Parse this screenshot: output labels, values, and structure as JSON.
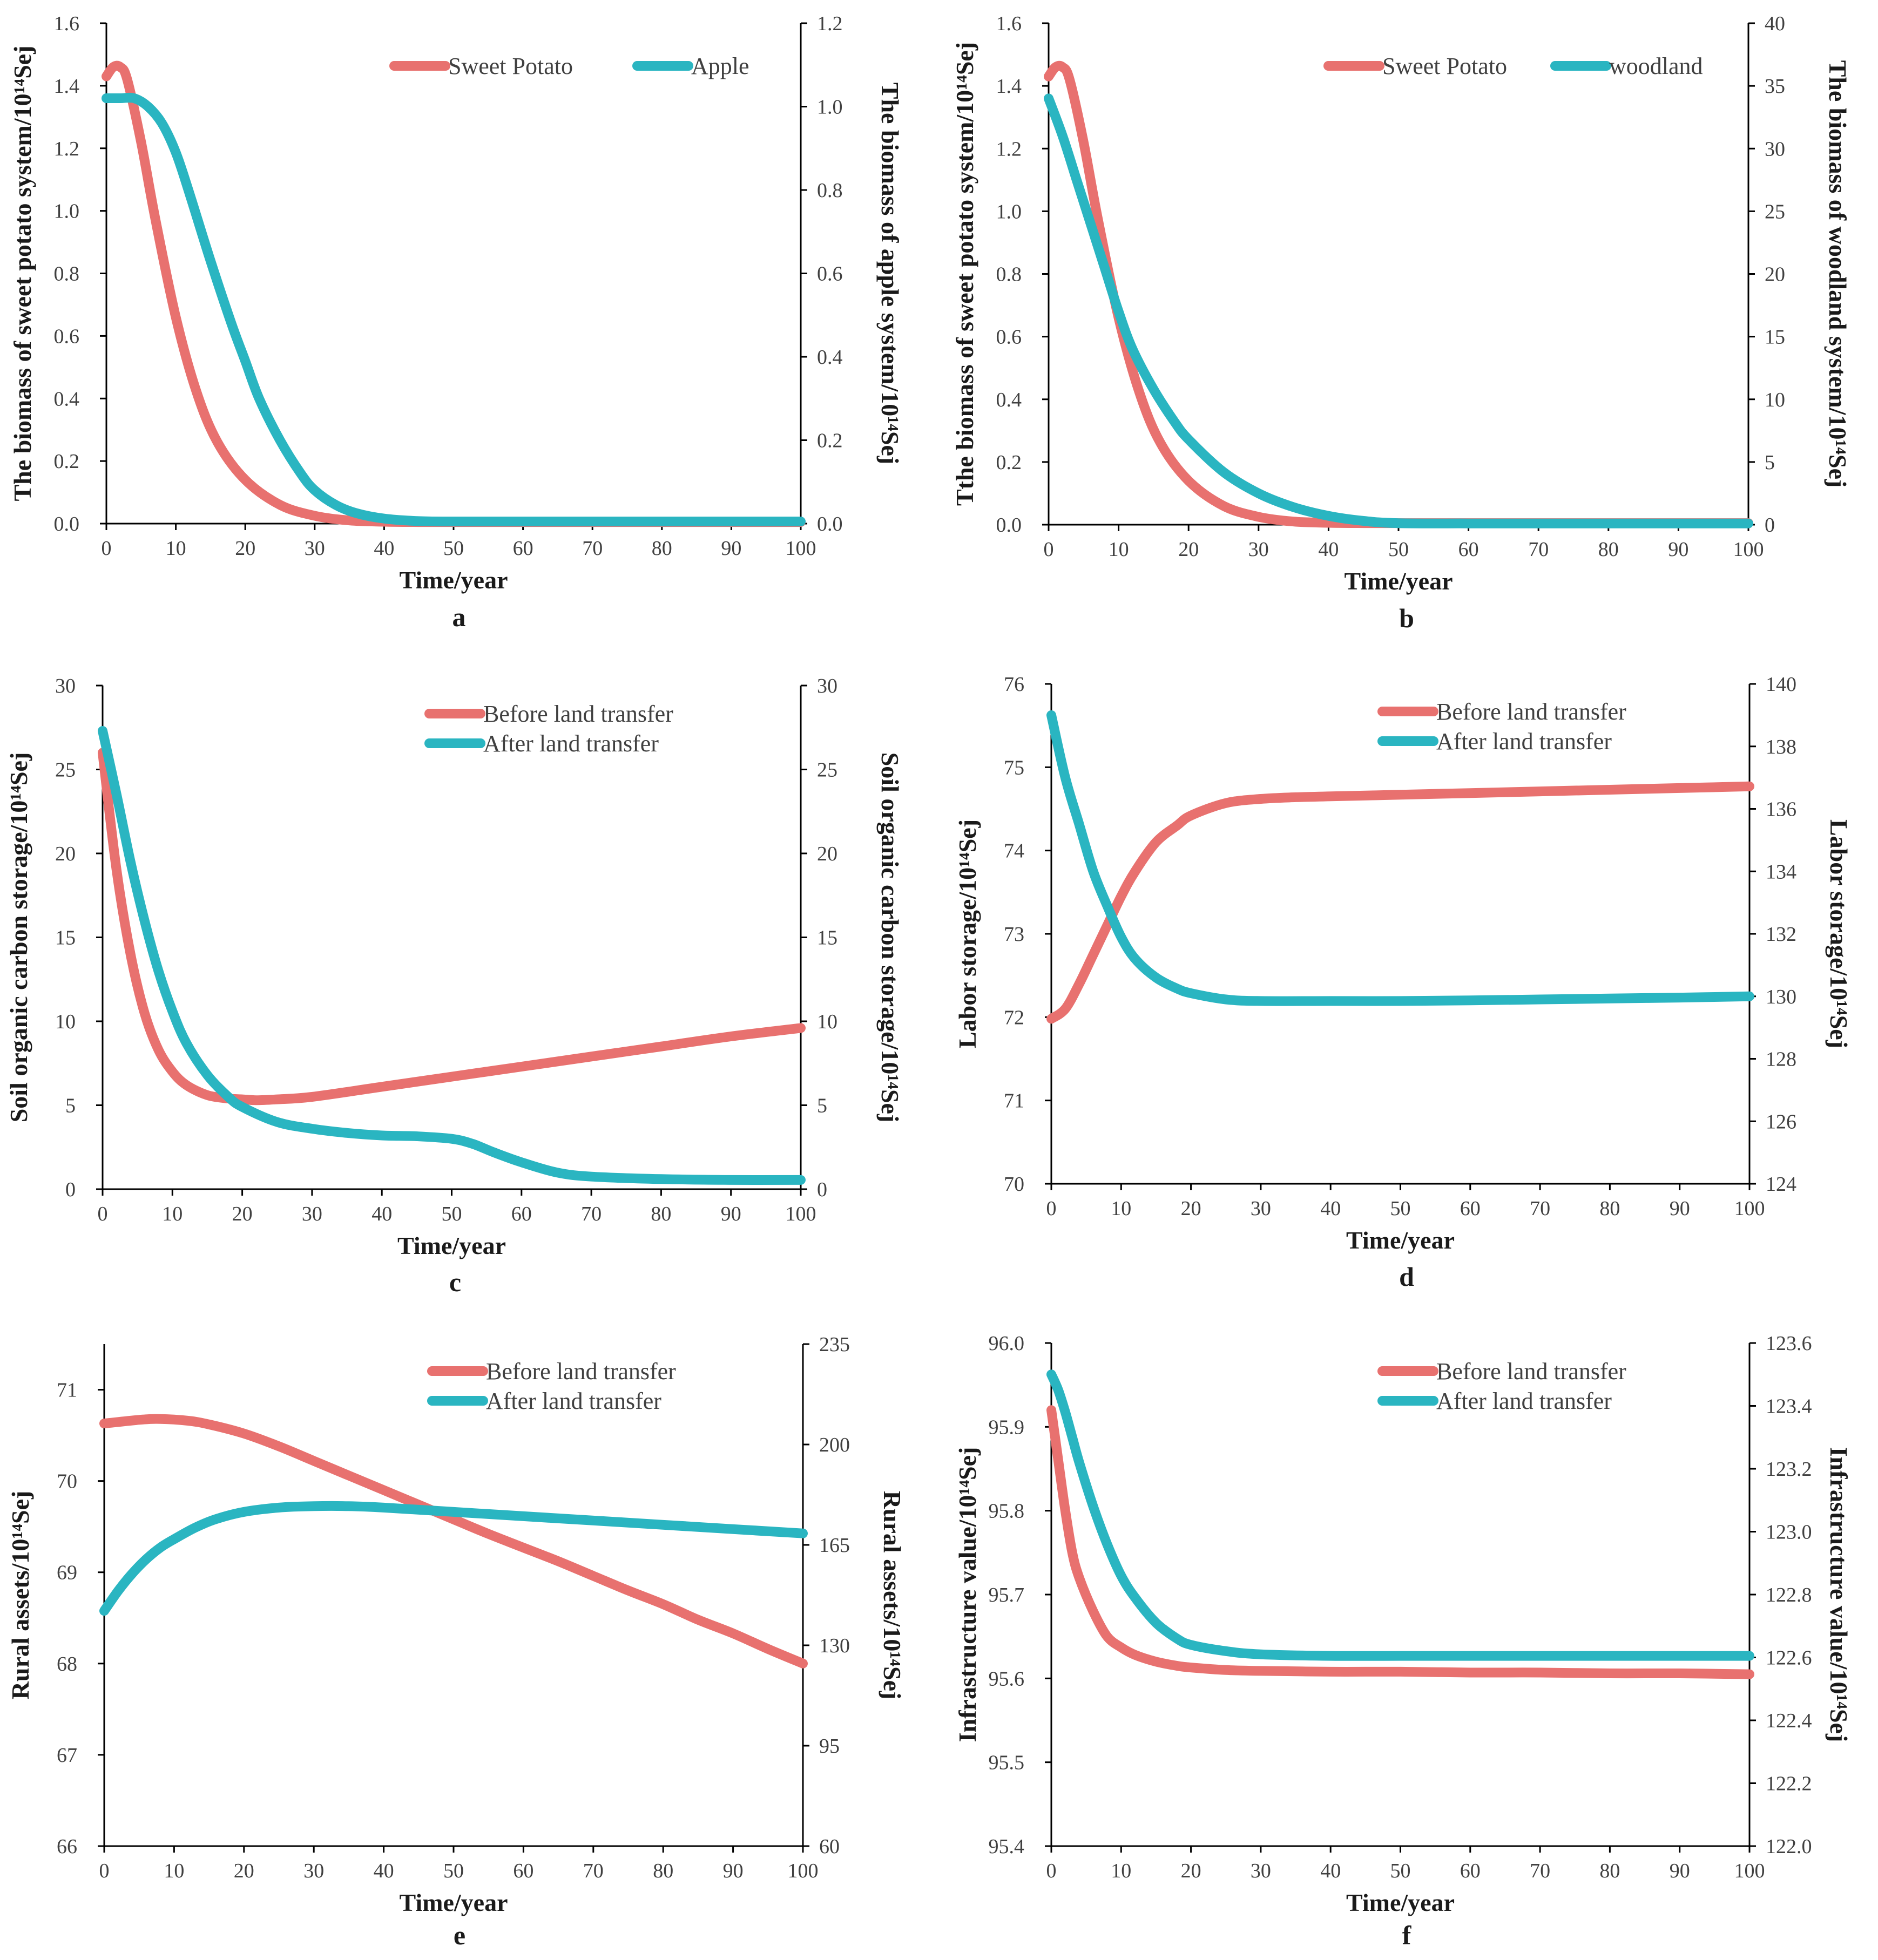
{
  "colors": {
    "red": "#e8716f",
    "teal": "#2ab5c1"
  },
  "chart_data": [
    {
      "type": "line",
      "id": "a",
      "label": "a",
      "xlabel": "Time/year",
      "ylabel_left": "The biomass of sweet potato system/10¹⁴Sej",
      "ylabel_right": "The biomass of apple system/10¹⁴Sej",
      "xlim": [
        0,
        100
      ],
      "x_ticks": [
        "0",
        "10",
        "20",
        "30",
        "40",
        "50",
        "60",
        "70",
        "80",
        "90",
        "100"
      ],
      "ylim_left": [
        0,
        1.6
      ],
      "y_ticks_left": [
        "0.0",
        "0.2",
        "0.4",
        "0.6",
        "0.8",
        "1.0",
        "1.2",
        "1.4",
        "1.6"
      ],
      "ylim_right": [
        0,
        1.2
      ],
      "y_ticks_right": [
        "0.0",
        "0.2",
        "0.4",
        "0.6",
        "0.8",
        "1.0",
        "1.2"
      ],
      "legend_layout": "row",
      "series": [
        {
          "name": "Sweet Potato",
          "axis": "left",
          "color": "#e8716f",
          "x": [
            0,
            1,
            2,
            3,
            5,
            7,
            10,
            13,
            16,
            20,
            25,
            30,
            35,
            40,
            45,
            50,
            60,
            70,
            80,
            90,
            100
          ],
          "y": [
            1.43,
            1.46,
            1.46,
            1.42,
            1.22,
            0.98,
            0.66,
            0.42,
            0.26,
            0.14,
            0.06,
            0.025,
            0.01,
            0.006,
            0.005,
            0.005,
            0.005,
            0.005,
            0.005,
            0.005,
            0.005
          ]
        },
        {
          "name": "Apple",
          "axis": "right",
          "color": "#2ab5c1",
          "x": [
            0,
            2,
            4,
            6,
            8,
            10,
            12,
            15,
            18,
            20,
            22,
            25,
            28,
            30,
            33,
            36,
            40,
            45,
            50,
            60,
            70,
            80,
            90,
            100
          ],
          "y": [
            1.02,
            1.02,
            1.02,
            1.0,
            0.96,
            0.89,
            0.79,
            0.63,
            0.48,
            0.39,
            0.3,
            0.2,
            0.12,
            0.08,
            0.045,
            0.025,
            0.012,
            0.006,
            0.005,
            0.005,
            0.005,
            0.005,
            0.005,
            0.005
          ]
        }
      ]
    },
    {
      "type": "line",
      "id": "b",
      "label": "b",
      "xlabel": "Time/year",
      "ylabel_left": "Tthe biomass of sweet potato system/10¹⁴Sej",
      "ylabel_right": "The biomass of woodland system/10¹⁴Sej",
      "xlim": [
        0,
        100
      ],
      "x_ticks": [
        "0",
        "10",
        "20",
        "30",
        "40",
        "50",
        "60",
        "70",
        "80",
        "90",
        "100"
      ],
      "ylim_left": [
        0,
        1.6
      ],
      "y_ticks_left": [
        "0.0",
        "0.2",
        "0.4",
        "0.6",
        "0.8",
        "1.0",
        "1.2",
        "1.4",
        "1.6"
      ],
      "ylim_right": [
        0,
        40
      ],
      "y_ticks_right": [
        "0",
        "5",
        "10",
        "15",
        "20",
        "25",
        "30",
        "35",
        "40"
      ],
      "legend_layout": "row",
      "series": [
        {
          "name": "Sweet Potato",
          "axis": "left",
          "color": "#e8716f",
          "x": [
            0,
            1,
            2,
            3,
            5,
            7,
            10,
            13,
            16,
            20,
            25,
            30,
            35,
            40,
            45,
            50,
            60,
            70,
            80,
            90,
            100
          ],
          "y": [
            1.43,
            1.46,
            1.46,
            1.42,
            1.22,
            0.98,
            0.66,
            0.42,
            0.26,
            0.14,
            0.06,
            0.025,
            0.01,
            0.006,
            0.005,
            0.005,
            0.005,
            0.005,
            0.005,
            0.005,
            0.005
          ]
        },
        {
          "name": "woodland",
          "axis": "right",
          "color": "#2ab5c1",
          "x": [
            0,
            2,
            4,
            6,
            8,
            10,
            12,
            15,
            18,
            20,
            25,
            30,
            35,
            40,
            45,
            50,
            60,
            70,
            80,
            90,
            100
          ],
          "y": [
            34,
            31,
            27.5,
            24,
            20.5,
            17,
            14,
            10.8,
            8.2,
            6.8,
            4.2,
            2.5,
            1.4,
            0.7,
            0.3,
            0.12,
            0.1,
            0.1,
            0.1,
            0.1,
            0.1
          ]
        }
      ]
    },
    {
      "type": "line",
      "id": "c",
      "label": "c",
      "xlabel": "Time/year",
      "ylabel_left": "Soil organic carbon storage/10¹⁴Sej",
      "ylabel_right": "Soil organic carbon storage/10¹⁴Sej",
      "xlim": [
        0,
        100
      ],
      "x_ticks": [
        "0",
        "10",
        "20",
        "30",
        "40",
        "50",
        "60",
        "70",
        "80",
        "90",
        "100"
      ],
      "ylim_left": [
        0,
        30
      ],
      "y_ticks_left": [
        "0",
        "5",
        "10",
        "15",
        "20",
        "25",
        "30"
      ],
      "ylim_right": [
        0,
        30
      ],
      "y_ticks_right": [
        "0",
        "5",
        "10",
        "15",
        "20",
        "25",
        "30"
      ],
      "legend_layout": "column",
      "series": [
        {
          "name": "Before land transfer",
          "axis": "left",
          "color": "#e8716f",
          "x": [
            0,
            2,
            4,
            6,
            8,
            10,
            12,
            15,
            18,
            20,
            22,
            25,
            30,
            40,
            50,
            60,
            70,
            80,
            90,
            100
          ],
          "y": [
            26,
            19,
            14,
            10.5,
            8.3,
            7,
            6.2,
            5.6,
            5.4,
            5.35,
            5.3,
            5.35,
            5.5,
            6.1,
            6.7,
            7.3,
            7.9,
            8.5,
            9.1,
            9.6
          ]
        },
        {
          "name": "After land transfer",
          "axis": "right",
          "color": "#2ab5c1",
          "x": [
            0,
            2,
            4,
            6,
            8,
            10,
            12,
            15,
            18,
            20,
            25,
            30,
            35,
            40,
            45,
            50,
            53,
            56,
            60,
            65,
            70,
            80,
            90,
            100
          ],
          "y": [
            27.3,
            23.5,
            19.5,
            16,
            13,
            10.6,
            8.7,
            6.8,
            5.5,
            4.9,
            4.0,
            3.6,
            3.35,
            3.2,
            3.15,
            3.0,
            2.7,
            2.2,
            1.6,
            1.0,
            0.75,
            0.6,
            0.55,
            0.55
          ]
        }
      ]
    },
    {
      "type": "line",
      "id": "d",
      "label": "d",
      "xlabel": "Time/year",
      "ylabel_left": "Labor storage/10¹⁴Sej",
      "ylabel_right": "Labor storage/10¹⁴Sej",
      "xlim": [
        0,
        100
      ],
      "x_ticks": [
        "0",
        "10",
        "20",
        "30",
        "40",
        "50",
        "60",
        "70",
        "80",
        "90",
        "100"
      ],
      "ylim_left": [
        70,
        76
      ],
      "y_ticks_left": [
        "70",
        "71",
        "72",
        "73",
        "74",
        "75",
        "76"
      ],
      "ylim_right": [
        124,
        140
      ],
      "y_ticks_right": [
        "124",
        "126",
        "128",
        "130",
        "132",
        "134",
        "136",
        "138",
        "140"
      ],
      "legend_layout": "column",
      "series": [
        {
          "name": "Before land transfer",
          "axis": "left",
          "color": "#e8716f",
          "x": [
            0,
            2,
            4,
            6,
            8,
            10,
            12,
            15,
            18,
            20,
            25,
            30,
            35,
            40,
            50,
            60,
            70,
            80,
            90,
            100
          ],
          "y": [
            71.98,
            72.1,
            72.4,
            72.75,
            73.1,
            73.45,
            73.75,
            74.1,
            74.3,
            74.42,
            74.57,
            74.62,
            74.64,
            74.65,
            74.67,
            74.69,
            74.71,
            74.73,
            74.75,
            74.77
          ]
        },
        {
          "name": "After land transfer",
          "axis": "right",
          "color": "#2ab5c1",
          "x": [
            0,
            2,
            4,
            6,
            8,
            10,
            12,
            15,
            18,
            20,
            25,
            30,
            40,
            50,
            60,
            70,
            80,
            90,
            100
          ],
          "y": [
            139,
            137,
            135.5,
            134,
            132.9,
            131.9,
            131.2,
            130.6,
            130.25,
            130.1,
            129.9,
            129.85,
            129.85,
            129.85,
            129.87,
            129.9,
            129.93,
            129.96,
            130.0
          ]
        }
      ]
    },
    {
      "type": "line",
      "id": "e",
      "label": "e",
      "xlabel": "Time/year",
      "ylabel_left": "Rural assets/10¹⁴Sej",
      "ylabel_right": "Rural assets/10¹⁴Sej",
      "xlim": [
        0,
        100
      ],
      "x_ticks": [
        "0",
        "10",
        "20",
        "30",
        "40",
        "50",
        "60",
        "70",
        "80",
        "90",
        "100"
      ],
      "ylim_left": [
        66,
        71.5
      ],
      "y_ticks_left": [
        "66",
        "67",
        "68",
        "69",
        "70",
        "71"
      ],
      "ylim_right": [
        60,
        235
      ],
      "y_ticks_right": [
        "60",
        "95",
        "130",
        "165",
        "200",
        "235"
      ],
      "legend_layout": "column",
      "series": [
        {
          "name": "Before land transfer",
          "axis": "left",
          "color": "#e8716f",
          "x": [
            0,
            5,
            8,
            12,
            15,
            20,
            25,
            30,
            35,
            40,
            45,
            50,
            55,
            60,
            65,
            70,
            75,
            80,
            85,
            90,
            95,
            100
          ],
          "y": [
            70.63,
            70.67,
            70.68,
            70.66,
            70.62,
            70.52,
            70.38,
            70.22,
            70.06,
            69.9,
            69.74,
            69.58,
            69.42,
            69.27,
            69.12,
            68.96,
            68.8,
            68.65,
            68.48,
            68.33,
            68.16,
            68.0
          ]
        },
        {
          "name": "After land transfer",
          "axis": "right",
          "color": "#2ab5c1",
          "x": [
            0,
            2,
            4,
            6,
            8,
            10,
            13,
            16,
            20,
            25,
            30,
            35,
            40,
            50,
            60,
            70,
            80,
            90,
            100
          ],
          "y": [
            142,
            149,
            155,
            160,
            164,
            167,
            171,
            174,
            176.5,
            178,
            178.5,
            178.5,
            178,
            176.5,
            175,
            173.5,
            172,
            170.5,
            169
          ]
        }
      ]
    },
    {
      "type": "line",
      "id": "f",
      "label": "f",
      "xlabel": "Time/year",
      "ylabel_left": "Infrastructure value/10¹⁴Sej",
      "ylabel_right": "Infrastructure value/10¹⁴Sej",
      "xlim": [
        0,
        100
      ],
      "x_ticks": [
        "0",
        "10",
        "20",
        "30",
        "40",
        "50",
        "60",
        "70",
        "80",
        "90",
        "100"
      ],
      "ylim_left": [
        95.4,
        96.0
      ],
      "y_ticks_left": [
        "95.4",
        "95.5",
        "95.6",
        "95.7",
        "95.8",
        "95.9",
        "96.0"
      ],
      "ylim_right": [
        122.0,
        123.6
      ],
      "y_ticks_right": [
        "122.0",
        "122.2",
        "122.4",
        "122.6",
        "122.8",
        "123.0",
        "123.2",
        "123.4",
        "123.6"
      ],
      "legend_layout": "column",
      "series": [
        {
          "name": "Before land transfer",
          "axis": "left",
          "color": "#e8716f",
          "x": [
            0,
            1,
            2,
            3,
            4,
            6,
            8,
            10,
            12,
            15,
            18,
            20,
            25,
            30,
            40,
            50,
            60,
            70,
            80,
            90,
            100
          ],
          "y": [
            95.92,
            95.86,
            95.8,
            95.75,
            95.72,
            95.68,
            95.65,
            95.637,
            95.628,
            95.62,
            95.615,
            95.613,
            95.61,
            95.609,
            95.608,
            95.608,
            95.607,
            95.607,
            95.606,
            95.606,
            95.605
          ]
        },
        {
          "name": "After land transfer",
          "axis": "right",
          "color": "#2ab5c1",
          "x": [
            0,
            1,
            2,
            3,
            4,
            6,
            8,
            10,
            12,
            15,
            18,
            20,
            25,
            30,
            40,
            50,
            60,
            70,
            80,
            90,
            100
          ],
          "y": [
            123.5,
            123.45,
            123.38,
            123.3,
            123.22,
            123.08,
            122.96,
            122.86,
            122.79,
            122.71,
            122.66,
            122.64,
            122.62,
            122.61,
            122.605,
            122.605,
            122.605,
            122.605,
            122.605,
            122.605,
            122.605
          ]
        }
      ]
    }
  ]
}
